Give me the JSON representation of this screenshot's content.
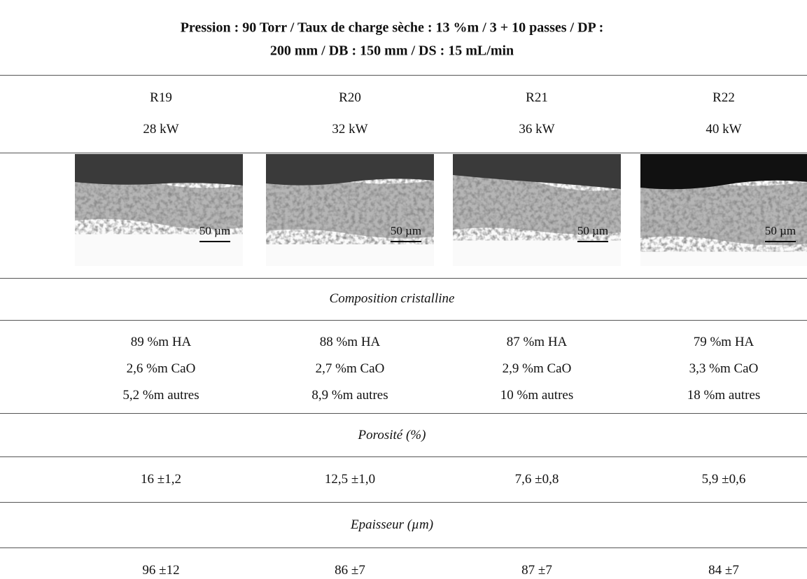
{
  "header": {
    "title_line1": "Pression : 90 Torr  / Taux de charge sèche : 13 %m  / 3 + 10 passes / DP :",
    "title_line2": "200 mm / DB : 150 mm  / DS : 15 mL/min"
  },
  "columns": [
    {
      "sample": "R19",
      "power": "28 kW",
      "scale_bar": "50 µm",
      "composition": [
        "89 %m HA",
        "2,6 %m CaO",
        "5,2 %m autres"
      ],
      "porosity": "16 ±1,2",
      "thickness": "96 ±12"
    },
    {
      "sample": "R20",
      "power": "32 kW",
      "scale_bar": "50 µm",
      "composition": [
        "88 %m HA",
        "2,7 %m CaO",
        "8,9 %m autres"
      ],
      "porosity": "12,5 ±1,0",
      "thickness": "86 ±7"
    },
    {
      "sample": "R21",
      "power": "36 kW",
      "scale_bar": "50 µm",
      "composition": [
        "87 %m HA",
        "2,9 %m CaO",
        "10 %m autres"
      ],
      "porosity": "7,6 ±0,8",
      "thickness": "87 ±7"
    },
    {
      "sample": "R22",
      "power": "40 kW",
      "scale_bar": "50 µm",
      "composition": [
        "79 %m HA",
        "3,3 %m CaO",
        "18 %m autres"
      ],
      "porosity": "5,9 ±0,6",
      "thickness": "84 ±7"
    }
  ],
  "sections": {
    "composition": "Composition cristalline",
    "porosity": "Porosité (%)",
    "thickness": "Epaisseur (µm)"
  }
}
